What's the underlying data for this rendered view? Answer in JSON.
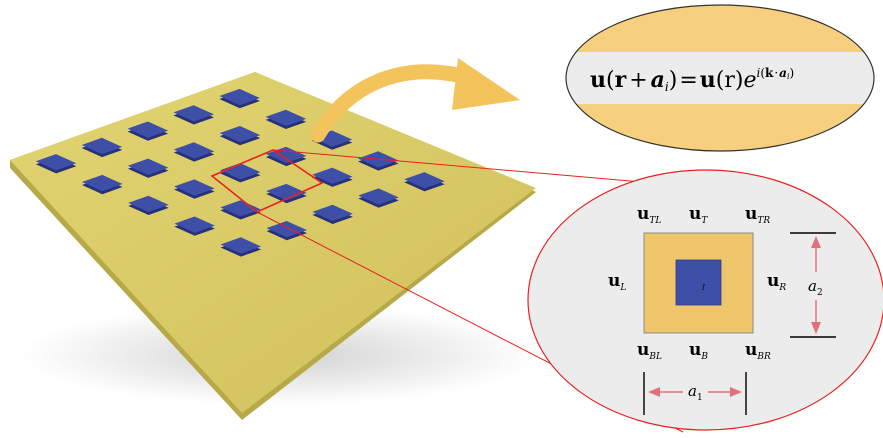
{
  "equation": {
    "lhs_u": "u",
    "lhs_open": "(",
    "lhs_r": "r",
    "lhs_plus": "+",
    "lhs_a": "a",
    "lhs_a_sub": "i",
    "lhs_close": ")",
    "eq": "=",
    "rhs_u": "u",
    "rhs_paren": "(r)",
    "rhs_e": "e",
    "exp_i": "i",
    "exp_open": "(",
    "exp_k": "k",
    "exp_dot": "·",
    "exp_a": "a",
    "exp_a_sub": "i",
    "exp_close": ")"
  },
  "cell": {
    "symbol": "u",
    "subscripts": {
      "TL": "TL",
      "T": "T",
      "TR": "TR",
      "L": "L",
      "R": "R",
      "BL": "BL",
      "B": "B",
      "BR": "BR",
      "I": "I"
    },
    "a1_label": "a",
    "a1_sub": "1",
    "a2_label": "a",
    "a2_sub": "2"
  },
  "colors": {
    "board_top": "#d8cb63",
    "board_edge": "#b8a948",
    "patch": "#3e4fa8",
    "patch_side": "#27317a",
    "highlight": "#e8211f",
    "arrow": "#f4c45c",
    "band": "#f6d07f",
    "ellipse_fill": "#ececec",
    "cell_square": "#efc56c",
    "dim_arrow": "#e0717a"
  }
}
